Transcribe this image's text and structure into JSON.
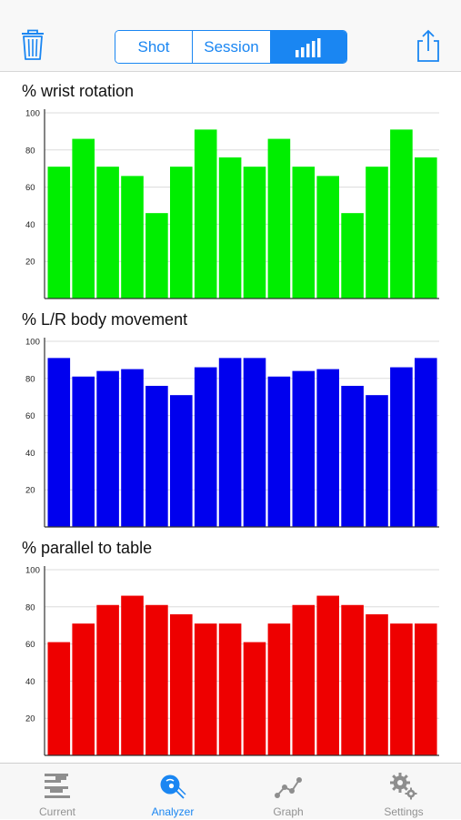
{
  "header": {
    "segments": [
      {
        "label": "Shot"
      },
      {
        "label": "Session"
      },
      {
        "label": "",
        "icon": "bar-chart-icon",
        "selected": true
      }
    ],
    "left_icon": "trash-icon",
    "right_icon": "share-icon",
    "accent_color": "#1a86f2"
  },
  "charts": [
    {
      "title": "% wrist rotation",
      "color": "#00ee00",
      "chart_data": {
        "type": "bar",
        "ylim": [
          0,
          100
        ],
        "yticks": [
          20,
          40,
          60,
          80,
          100
        ],
        "values": [
          71,
          86,
          71,
          66,
          46,
          71,
          91,
          76,
          71,
          86,
          71,
          66,
          46,
          71,
          91,
          76
        ]
      }
    },
    {
      "title": "% L/R body movement",
      "color": "#0000ee",
      "chart_data": {
        "type": "bar",
        "ylim": [
          0,
          100
        ],
        "yticks": [
          20,
          40,
          60,
          80,
          100
        ],
        "values": [
          91,
          81,
          84,
          85,
          76,
          71,
          86,
          91,
          91,
          81,
          84,
          85,
          76,
          71,
          86,
          91
        ]
      }
    },
    {
      "title": "% parallel to table",
      "color": "#ee0000",
      "chart_data": {
        "type": "bar",
        "ylim": [
          0,
          100
        ],
        "yticks": [
          20,
          40,
          60,
          80,
          100
        ],
        "values": [
          61,
          71,
          81,
          86,
          81,
          76,
          71,
          71,
          61,
          71,
          81,
          86,
          81,
          76,
          71,
          71
        ]
      }
    }
  ],
  "tabbar": {
    "tabs": [
      {
        "label": "Current",
        "icon": "current-icon",
        "active": false
      },
      {
        "label": "Analyzer",
        "icon": "analyzer-icon",
        "active": true
      },
      {
        "label": "Graph",
        "icon": "graph-icon",
        "active": false
      },
      {
        "label": "Settings",
        "icon": "settings-icon",
        "active": false
      }
    ],
    "active_color": "#1a86f2",
    "inactive_color": "#929292"
  }
}
